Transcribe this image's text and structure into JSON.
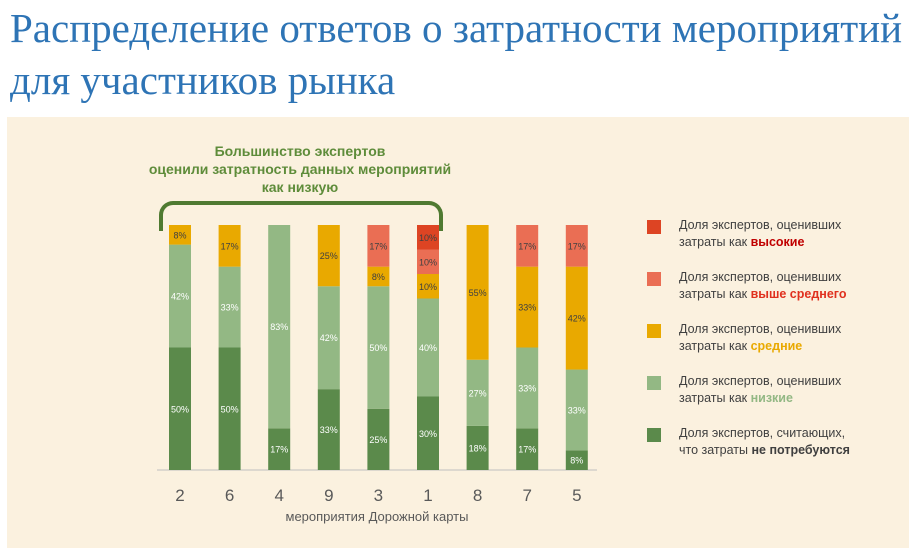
{
  "title": "Распределение ответов о затратности мероприятий для участников рынка",
  "annotation": {
    "line1": "Большинство экспертов",
    "line2": "оценили затратность данных мероприятий",
    "line3": "как низкую"
  },
  "chart_data": {
    "type": "bar",
    "stacked": true,
    "xlabel": "мероприятия Дорожной карты",
    "categories": [
      "2",
      "6",
      "4",
      "9",
      "3",
      "1",
      "8",
      "7",
      "5"
    ],
    "ylim": [
      0,
      100
    ],
    "grid": false,
    "legend_position": "right",
    "series": [
      {
        "key": "none",
        "color": "#5b8a4b",
        "values": [
          50,
          50,
          17,
          33,
          25,
          30,
          18,
          17,
          8
        ]
      },
      {
        "key": "low",
        "color": "#93b884",
        "values": [
          42,
          33,
          83,
          42,
          50,
          40,
          27,
          33,
          33
        ]
      },
      {
        "key": "medium",
        "color": "#e9a900",
        "values": [
          8,
          17,
          0,
          25,
          8,
          10,
          55,
          33,
          42
        ]
      },
      {
        "key": "above",
        "color": "#ea6e54",
        "values": [
          0,
          0,
          0,
          0,
          17,
          10,
          0,
          17,
          17
        ]
      },
      {
        "key": "high",
        "color": "#dd4423",
        "values": [
          0,
          0,
          0,
          0,
          0,
          10,
          0,
          0,
          0
        ]
      }
    ]
  },
  "legend": [
    {
      "color": "#dd4423",
      "line1": "Доля экспертов, оценивших",
      "line2_prefix": "затраты как ",
      "emphasis": "высокие",
      "emphasis_color": "#c00000"
    },
    {
      "color": "#ea6e54",
      "line1": "Доля экспертов, оценивших",
      "line2_prefix": "затраты как ",
      "emphasis": "выше среднего",
      "emphasis_color": "#e0301e"
    },
    {
      "color": "#e9a900",
      "line1": "Доля экспертов, оценивших",
      "line2_prefix": "затраты как ",
      "emphasis": "средние",
      "emphasis_color": "#e9a900"
    },
    {
      "color": "#93b884",
      "line1": "Доля экспертов, оценивших",
      "line2_prefix": "затраты как ",
      "emphasis": "низкие",
      "emphasis_color": "#93b884"
    },
    {
      "color": "#5b8a4b",
      "line1": "Доля экспертов, считающих,",
      "line2_prefix": "что затраты ",
      "emphasis": "не потребуются",
      "emphasis_color": "#404040"
    }
  ]
}
